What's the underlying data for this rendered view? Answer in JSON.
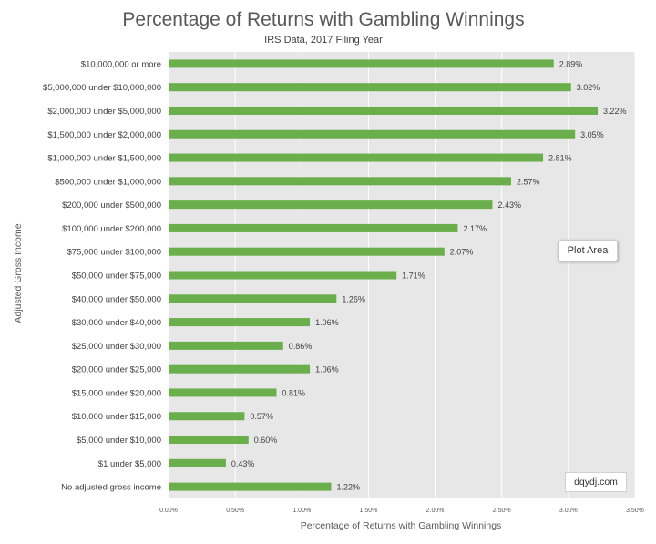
{
  "chart_data": {
    "type": "bar",
    "orientation": "horizontal",
    "title": "Percentage of Returns with Gambling Winnings",
    "subtitle": "IRS Data, 2017 Filing Year",
    "xlabel": "Percentage of Returns with Gambling Winnings",
    "ylabel": "Adjusted Gross Income",
    "xlim": [
      0,
      3.5
    ],
    "xticks": [
      "0.00%",
      "0.50%",
      "1.00%",
      "1.50%",
      "2.00%",
      "2.50%",
      "3.00%",
      "3.50%"
    ],
    "grid": true,
    "categories": [
      "$10,000,000 or more",
      "$5,000,000 under $10,000,000",
      "$2,000,000 under $5,000,000",
      "$1,500,000 under $2,000,000",
      "$1,000,000 under $1,500,000",
      "$500,000 under $1,000,000",
      "$200,000 under $500,000",
      "$100,000 under $200,000",
      "$75,000 under $100,000",
      "$50,000 under $75,000",
      "$40,000 under $50,000",
      "$30,000 under $40,000",
      "$25,000 under $30,000",
      "$20,000 under $25,000",
      "$15,000 under $20,000",
      "$10,000 under $15,000",
      "$5,000 under $10,000",
      "$1 under $5,000",
      "No adjusted gross income"
    ],
    "values": [
      2.89,
      3.02,
      3.22,
      3.05,
      2.81,
      2.57,
      2.43,
      2.17,
      2.07,
      1.71,
      1.26,
      1.06,
      0.86,
      1.06,
      0.81,
      0.57,
      0.6,
      0.43,
      1.22
    ],
    "data_labels": [
      "2.89%",
      "3.02%",
      "3.22%",
      "3.05%",
      "2.81%",
      "2.57%",
      "2.43%",
      "2.17%",
      "2.07%",
      "1.71%",
      "1.26%",
      "1.06%",
      "0.86%",
      "1.06%",
      "0.81%",
      "0.57%",
      "0.60%",
      "0.43%",
      "1.22%"
    ],
    "bar_color": "#6aaf4c",
    "plot_area_color": "#e7e7e7"
  },
  "tooltip": {
    "text": "Plot Area"
  },
  "credit": {
    "text": "dqydj.com"
  }
}
